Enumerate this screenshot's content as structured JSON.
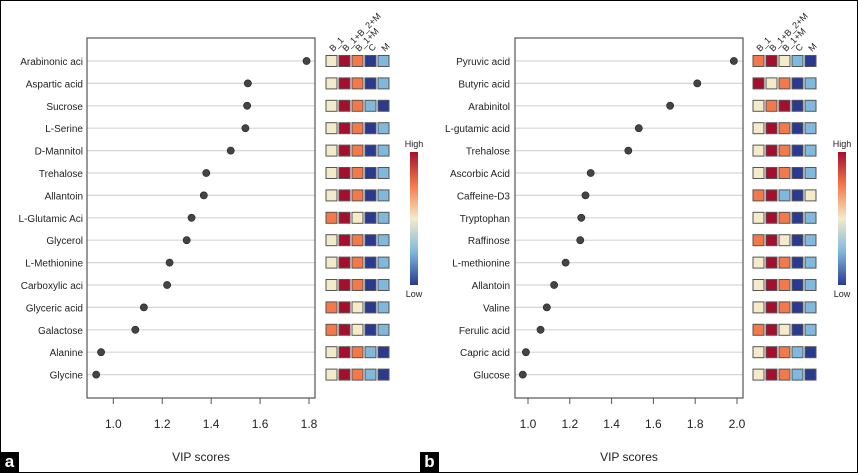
{
  "chart_data": [
    {
      "type": "scatter",
      "panel_label": "a",
      "xlabel": "VIP scores",
      "xlim": [
        0.9,
        1.82
      ],
      "xticks": [
        "1.0",
        "1.2",
        "1.4",
        "1.6",
        "1.8"
      ],
      "grid": "horizontal",
      "categories": [
        "Arabinonic aci",
        "Aspartic acid",
        "Sucrose",
        "L-Serine",
        "D-Mannitol",
        "Trehalose",
        "Allantoin",
        "L-Glutamic Aci",
        "Glycerol",
        "L-Methionine",
        "Carboxylic aci",
        "Glyceric acid",
        "Galactose",
        "Alanine",
        "Glycine"
      ],
      "values": [
        1.79,
        1.55,
        1.547,
        1.54,
        1.48,
        1.38,
        1.37,
        1.32,
        1.3,
        1.23,
        1.22,
        1.125,
        1.09,
        0.95,
        0.93
      ],
      "heatmap": {
        "columns": [
          "B_1",
          "B_1+B_2+M",
          "B_1+M",
          "C",
          "M"
        ],
        "levels": [
          [
            3,
            5,
            4,
            1,
            2
          ],
          [
            3,
            5,
            4,
            1,
            2
          ],
          [
            3,
            5,
            4,
            2,
            1
          ],
          [
            3,
            5,
            4,
            1,
            2
          ],
          [
            3,
            5,
            4,
            1,
            2
          ],
          [
            3,
            5,
            4,
            1,
            2
          ],
          [
            3,
            5,
            4,
            1,
            2
          ],
          [
            4,
            5,
            3,
            1,
            2
          ],
          [
            3,
            5,
            4,
            1,
            2
          ],
          [
            3,
            5,
            4,
            1,
            2
          ],
          [
            3,
            5,
            4,
            1,
            2
          ],
          [
            4,
            5,
            3,
            1,
            2
          ],
          [
            4,
            5,
            3,
            1,
            2
          ],
          [
            3,
            5,
            4,
            2,
            1
          ],
          [
            3,
            5,
            4,
            2,
            1
          ]
        ]
      },
      "legend": {
        "high": "High",
        "low": "Low",
        "placement": "right"
      }
    },
    {
      "type": "scatter",
      "panel_label": "b",
      "xlabel": "VIP scores",
      "xlim": [
        0.93,
        2.03
      ],
      "xticks": [
        "1.0",
        "1.2",
        "1.4",
        "1.6",
        "1.8",
        "2.0"
      ],
      "grid": "horizontal",
      "categories": [
        "Pyruvic acid",
        "Butyric acid",
        "Arabinitol",
        "L-gutamic acid",
        "Trehalose",
        "Ascorbic Acid",
        "Caffeine-D3",
        "Tryptophan",
        "Raffinose",
        "L-methionine",
        "Allantoin",
        "Valine",
        "Ferulic acid",
        "Capric acid",
        "Glucose"
      ],
      "values": [
        1.985,
        1.81,
        1.68,
        1.53,
        1.48,
        1.3,
        1.275,
        1.255,
        1.25,
        1.18,
        1.125,
        1.09,
        1.06,
        0.99,
        0.975
      ],
      "heatmap": {
        "columns": [
          "B_1",
          "B_1+B_2+M",
          "B_1+M",
          "C",
          "M"
        ],
        "levels": [
          [
            4,
            5,
            3,
            2,
            1
          ],
          [
            5,
            3,
            4,
            1,
            2
          ],
          [
            3,
            4,
            5,
            1,
            2
          ],
          [
            3,
            5,
            4,
            1,
            2
          ],
          [
            3,
            5,
            4,
            1,
            2
          ],
          [
            3,
            5,
            4,
            1,
            2
          ],
          [
            4,
            5,
            2,
            1,
            3
          ],
          [
            3,
            5,
            4,
            1,
            2
          ],
          [
            4,
            5,
            3,
            1,
            2
          ],
          [
            3,
            5,
            4,
            1,
            2
          ],
          [
            3,
            5,
            4,
            1,
            2
          ],
          [
            3,
            5,
            4,
            1,
            2
          ],
          [
            4,
            5,
            3,
            1,
            2
          ],
          [
            3,
            5,
            4,
            2,
            1
          ],
          [
            3,
            5,
            4,
            2,
            1
          ]
        ]
      },
      "legend": {
        "high": "High",
        "low": "Low",
        "placement": "right"
      }
    }
  ],
  "colors": {
    "level_1": "#2b3a91",
    "level_2": "#80b9dc",
    "level_3": "#f3ebc9",
    "level_4": "#f4794a",
    "level_5": "#a50f2e",
    "point": "#444444",
    "grid": "#d6d6d6"
  }
}
